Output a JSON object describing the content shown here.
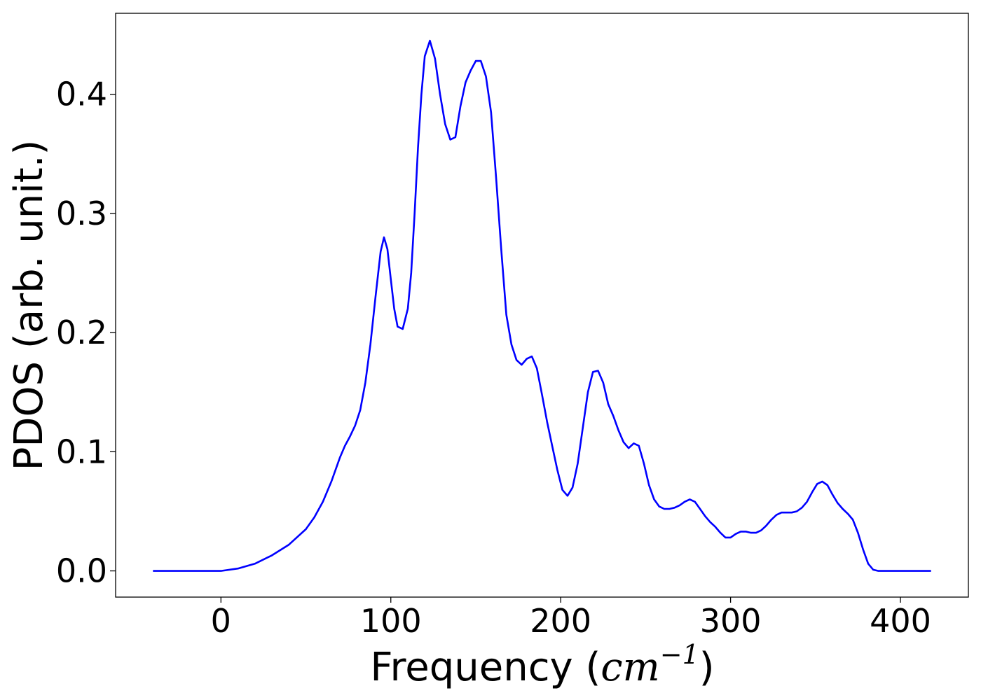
{
  "chart_data": {
    "type": "line",
    "title": "",
    "xlabel": {
      "prefix": "Frequency (",
      "math_base": "cm",
      "math_sup": "−1",
      "suffix": ")"
    },
    "ylabel": "PDOS (arb. unit.)",
    "xlim": [
      -62,
      440
    ],
    "ylim": [
      -0.022,
      0.468
    ],
    "xticks": [
      0,
      100,
      200,
      300,
      400
    ],
    "xtick_labels": [
      "0",
      "100",
      "200",
      "300",
      "400"
    ],
    "yticks": [
      0.0,
      0.1,
      0.2,
      0.3,
      0.4
    ],
    "ytick_labels": [
      "0.0",
      "0.1",
      "0.2",
      "0.3",
      "0.4"
    ],
    "grid": false,
    "legend": "none",
    "series": [
      {
        "color": "#0000ff",
        "x": [
          -40,
          -20,
          0,
          10,
          20,
          30,
          40,
          50,
          55,
          60,
          65,
          70,
          73,
          76,
          79,
          82,
          85,
          88,
          91,
          94,
          96,
          98,
          100,
          102,
          104,
          107,
          110,
          112,
          114,
          116,
          118,
          120,
          123,
          126,
          129,
          132,
          135,
          138,
          141,
          144,
          147,
          150,
          153,
          156,
          159,
          162,
          165,
          168,
          171,
          174,
          177,
          180,
          183,
          186,
          189,
          192,
          195,
          198,
          201,
          204,
          207,
          210,
          213,
          216,
          219,
          222,
          225,
          228,
          231,
          234,
          237,
          240,
          243,
          246,
          249,
          252,
          255,
          258,
          261,
          264,
          267,
          270,
          273,
          276,
          279,
          282,
          285,
          288,
          291,
          294,
          297,
          300,
          303,
          306,
          309,
          312,
          315,
          318,
          321,
          324,
          327,
          330,
          333,
          336,
          339,
          342,
          345,
          348,
          351,
          354,
          357,
          360,
          363,
          366,
          369,
          372,
          375,
          378,
          381,
          384,
          387,
          390,
          395,
          400,
          410,
          418
        ],
        "y": [
          0.0,
          0.0,
          0.0,
          0.002,
          0.006,
          0.013,
          0.022,
          0.035,
          0.045,
          0.058,
          0.075,
          0.095,
          0.105,
          0.113,
          0.122,
          0.135,
          0.158,
          0.19,
          0.23,
          0.268,
          0.28,
          0.27,
          0.245,
          0.22,
          0.205,
          0.203,
          0.22,
          0.25,
          0.3,
          0.355,
          0.4,
          0.432,
          0.445,
          0.43,
          0.4,
          0.375,
          0.362,
          0.364,
          0.39,
          0.41,
          0.42,
          0.428,
          0.428,
          0.415,
          0.385,
          0.33,
          0.27,
          0.215,
          0.19,
          0.177,
          0.173,
          0.178,
          0.18,
          0.17,
          0.148,
          0.125,
          0.105,
          0.085,
          0.068,
          0.063,
          0.07,
          0.09,
          0.12,
          0.15,
          0.167,
          0.168,
          0.158,
          0.14,
          0.13,
          0.118,
          0.108,
          0.103,
          0.107,
          0.105,
          0.09,
          0.072,
          0.06,
          0.054,
          0.052,
          0.052,
          0.053,
          0.055,
          0.058,
          0.06,
          0.058,
          0.052,
          0.046,
          0.041,
          0.037,
          0.032,
          0.028,
          0.028,
          0.031,
          0.033,
          0.033,
          0.032,
          0.032,
          0.034,
          0.038,
          0.043,
          0.047,
          0.049,
          0.049,
          0.049,
          0.05,
          0.053,
          0.058,
          0.066,
          0.073,
          0.075,
          0.072,
          0.064,
          0.057,
          0.052,
          0.048,
          0.043,
          0.032,
          0.018,
          0.006,
          0.001,
          0.0,
          0.0,
          0.0,
          0.0,
          0.0,
          0.0
        ]
      }
    ]
  }
}
